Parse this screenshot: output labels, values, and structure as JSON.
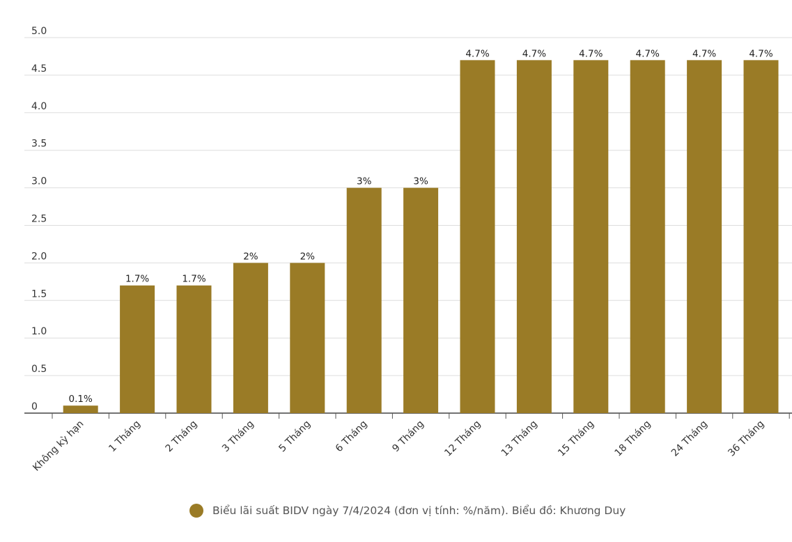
{
  "chart_data": {
    "type": "bar",
    "categories": [
      "Không kỳ hạn",
      "1 Tháng",
      "2 Tháng",
      "3 Tháng",
      "5 Tháng",
      "6 Tháng",
      "9 Tháng",
      "12 Tháng",
      "13 Tháng",
      "15 Tháng",
      "18 Tháng",
      "24 Tháng",
      "36 Tháng"
    ],
    "values": [
      0.1,
      1.7,
      1.7,
      2,
      2,
      3,
      3,
      4.7,
      4.7,
      4.7,
      4.7,
      4.7,
      4.7
    ],
    "value_labels": [
      "0.1%",
      "1.7%",
      "1.7%",
      "2%",
      "2%",
      "3%",
      "3%",
      "4.7%",
      "4.7%",
      "4.7%",
      "4.7%",
      "4.7%",
      "4.7%"
    ],
    "yticks": [
      "0",
      "0.5",
      "1.0",
      "1.5",
      "2.0",
      "2.5",
      "3.0",
      "3.5",
      "4.0",
      "4.5",
      "5.0"
    ],
    "ylim": [
      0,
      5
    ],
    "grid": true,
    "legend_position": "bottom",
    "bar_color": "#9a7b26",
    "legend": {
      "label": "Biểu lãi suất BIDV ngày 7/4/2024 (đơn vị tính: %/năm). Biểu đồ: Khương Duy",
      "color": "#9a7b26"
    }
  }
}
